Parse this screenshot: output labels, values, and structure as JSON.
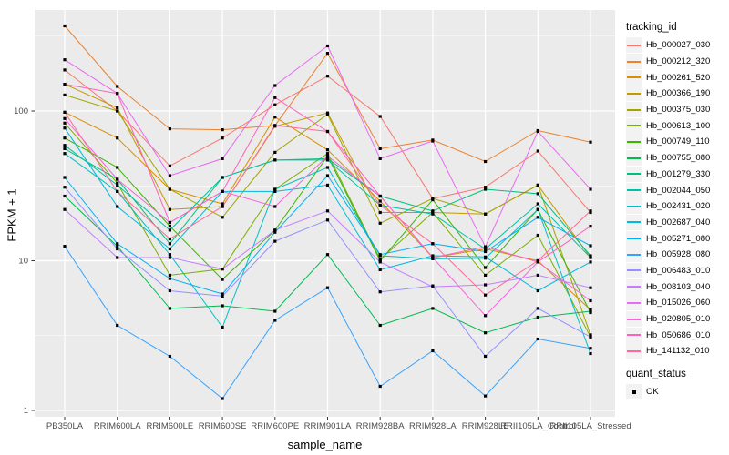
{
  "chart_data": {
    "type": "line",
    "title": "",
    "xlabel": "sample_name",
    "ylabel": "FPKM + 1",
    "y_scale": "log10",
    "y_ticks": [
      1,
      10,
      100
    ],
    "y_tick_labels": [
      "1",
      "10",
      "100"
    ],
    "ylim": [
      1,
      460
    ],
    "grid": true,
    "legend_position": "right",
    "point_shape": "square",
    "point_color": "#000000",
    "panel_bg": "#EBEBEB",
    "grid_color": "#FFFFFF",
    "tick_text_color": "#4D4D4D",
    "categories": [
      "PB350LA",
      "RRIM600LA",
      "RRIM600LE",
      "RRIM600SE",
      "RRIM600PE",
      "RRIM901LA",
      "RRIM928BA",
      "RRIM928LA",
      "RRIM928LE",
      "RRII105LA_Control",
      "RRII105LA_Stressed"
    ],
    "series": [
      {
        "name": "Hb_000027_030",
        "color": "#F8766D",
        "values": [
          188,
          100,
          43,
          66,
          110,
          171,
          92,
          26,
          31,
          54,
          21
        ]
      },
      {
        "name": "Hb_000212_320",
        "color": "#EA8331",
        "values": [
          370,
          146,
          76,
          75,
          80,
          243,
          56,
          64,
          46,
          74,
          62
        ]
      },
      {
        "name": "Hb_000261_520",
        "color": "#D89000",
        "values": [
          98,
          66,
          30,
          24,
          91,
          55,
          25,
          10.5,
          12,
          10,
          4.7
        ]
      },
      {
        "name": "Hb_000366_190",
        "color": "#C09B00",
        "values": [
          151,
          105,
          22,
          23,
          79,
          97,
          21,
          21,
          20.5,
          32,
          10.5
        ]
      },
      {
        "name": "Hb_000375_030",
        "color": "#A3A500",
        "values": [
          128,
          100,
          30,
          19.5,
          53,
          95,
          17.8,
          26,
          20.5,
          32,
          3.2
        ]
      },
      {
        "name": "Hb_000613_100",
        "color": "#7CAE00",
        "values": [
          83,
          33,
          8,
          8.8,
          30,
          52,
          10.2,
          21,
          8,
          14.8,
          3.1
        ]
      },
      {
        "name": "Hb_000749_110",
        "color": "#39B600",
        "values": [
          66,
          42,
          17,
          7.5,
          16,
          50,
          10,
          25.5,
          9,
          22,
          4.5
        ]
      },
      {
        "name": "Hb_000755_080",
        "color": "#00BB4E",
        "values": [
          27,
          12.5,
          4.8,
          5,
          4.6,
          11,
          3.7,
          4.8,
          3.3,
          4.2,
          4.6
        ]
      },
      {
        "name": "Hb_001279_330",
        "color": "#00BF7D",
        "values": [
          56,
          35,
          13,
          36,
          47,
          48,
          27,
          21.5,
          30,
          28,
          10.8
        ]
      },
      {
        "name": "Hb_002044_050",
        "color": "#00C1A3",
        "values": [
          59,
          32,
          16,
          36,
          47,
          47,
          23.5,
          20.5,
          12,
          24,
          10.5
        ]
      },
      {
        "name": "Hb_002431_020",
        "color": "#00BFC4",
        "values": [
          52,
          29,
          11,
          3.6,
          30,
          42,
          10.8,
          10.3,
          10.4,
          22,
          2.4
        ]
      },
      {
        "name": "Hb_002687_040",
        "color": "#00BAE0",
        "values": [
          77,
          23,
          12,
          29,
          29,
          32,
          8.7,
          10.8,
          10.6,
          6.3,
          9.8
        ]
      },
      {
        "name": "Hb_005271_080",
        "color": "#00B0F6",
        "values": [
          36,
          13,
          7.6,
          6,
          15.5,
          37,
          11,
          13,
          11.5,
          19.5,
          12.6
        ]
      },
      {
        "name": "Hb_005928_080",
        "color": "#35A2FF",
        "values": [
          12.5,
          3.7,
          2.3,
          1.2,
          4,
          6.6,
          1.45,
          2.5,
          1.25,
          3,
          2.6
        ]
      },
      {
        "name": "Hb_006483_010",
        "color": "#9590FF",
        "values": [
          31,
          12,
          6.3,
          5.8,
          13.5,
          18.7,
          6.2,
          6.8,
          2.3,
          4.8,
          3.1
        ]
      },
      {
        "name": "Hb_008103_040",
        "color": "#C77CFF",
        "values": [
          22,
          10.5,
          10.5,
          8.8,
          16,
          21.5,
          9.8,
          6.7,
          6.9,
          8,
          6.6
        ]
      },
      {
        "name": "Hb_015026_060",
        "color": "#E76BF3",
        "values": [
          220,
          131,
          37,
          48,
          148,
          272,
          48,
          63,
          12.4,
          73,
          30
        ]
      },
      {
        "name": "Hb_020805_010",
        "color": "#FA62DB",
        "values": [
          89,
          35,
          18,
          29,
          23,
          50,
          27,
          10.5,
          4.3,
          9.8,
          5.4
        ]
      },
      {
        "name": "Hb_050686_010",
        "color": "#FF62BC",
        "values": [
          151,
          131,
          18,
          29,
          123,
          73,
          27,
          10.5,
          12.4,
          9.8,
          17
        ]
      },
      {
        "name": "Hb_141132_010",
        "color": "#FF6A98",
        "values": [
          98,
          29,
          14,
          23,
          80,
          73,
          23.5,
          13,
          5.9,
          10,
          21.5
        ]
      }
    ]
  },
  "legend": {
    "tracking_title": "tracking_id",
    "quant_title": "quant_status",
    "quant_items": [
      {
        "label": "OK",
        "shape": "square",
        "color": "#000000"
      }
    ]
  }
}
